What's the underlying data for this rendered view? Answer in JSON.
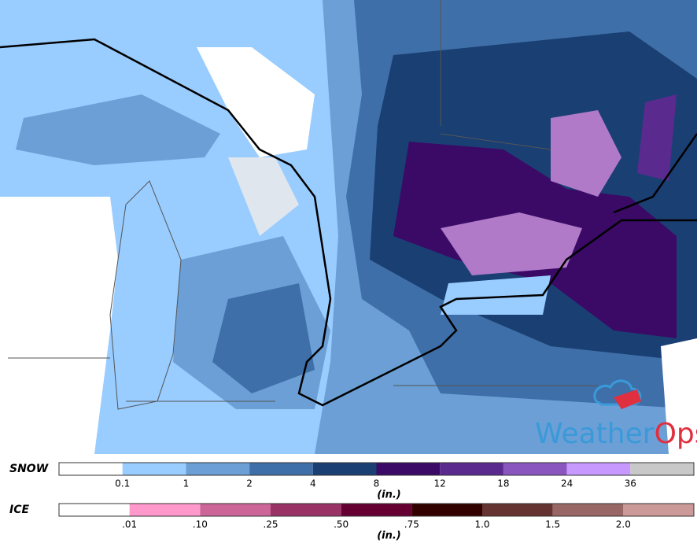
{
  "logo": {
    "part1": "Weather",
    "part2": "Ops"
  },
  "legends": [
    {
      "label": "SNOW",
      "unit": "(in.)",
      "colors": [
        "#ffffff",
        "#99ccff",
        "#6b9fd6",
        "#3f6fa8",
        "#1a3f73",
        "#3a0a66",
        "#5a2a8f",
        "#8a55bf",
        "#c799ff",
        "#c8c8c8"
      ],
      "ticks": [
        "0.1",
        "1",
        "2",
        "4",
        "8",
        "12",
        "18",
        "24",
        "36"
      ]
    },
    {
      "label": "ICE",
      "unit": "(in.)",
      "colors": [
        "#ffffff",
        "#ff99cc",
        "#cc6699",
        "#993366",
        "#660033",
        "#330000",
        "#663333",
        "#996666",
        "#cc9999"
      ],
      "ticks": [
        ".01",
        ".10",
        ".25",
        ".50",
        ".75",
        "1.0",
        "1.5",
        "2.0"
      ]
    }
  ]
}
